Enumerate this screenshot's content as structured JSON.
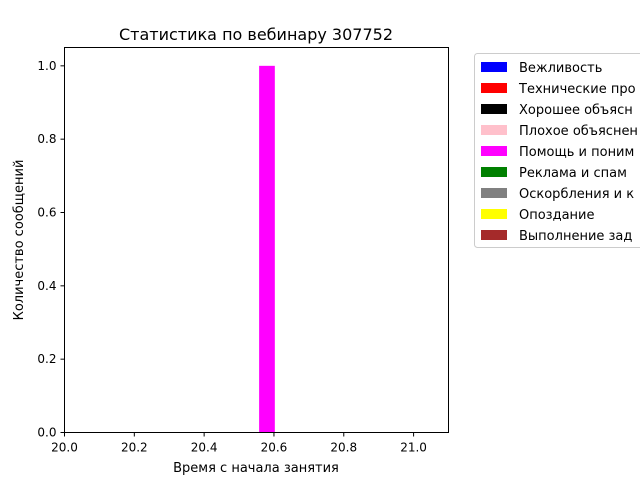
{
  "chart_data": {
    "type": "bar",
    "title": "Статистика по вебинару 307752",
    "xlabel": "Время с начала занятия",
    "ylabel": "Количество сообщений",
    "xlim": [
      20.0,
      21.1
    ],
    "ylim": [
      0,
      1.05
    ],
    "xticks": [
      "20.0",
      "20.2",
      "20.4",
      "20.6",
      "20.8",
      "21.0"
    ],
    "xtick_values": [
      20.0,
      20.2,
      20.4,
      20.6,
      20.8,
      21.0
    ],
    "yticks": [
      "0.0",
      "0.2",
      "0.4",
      "0.6",
      "0.8",
      "1.0"
    ],
    "ytick_values": [
      0.0,
      0.2,
      0.4,
      0.6,
      0.8,
      1.0
    ],
    "grid": false,
    "legend_position": "outside-right",
    "series": [
      {
        "name": "Вежливость",
        "color": "#0000ff",
        "points": []
      },
      {
        "name": "Технические про",
        "color": "#ff0000",
        "points": []
      },
      {
        "name": "Хорошее объясн",
        "color": "#000000",
        "points": []
      },
      {
        "name": "Плохое объяснен",
        "color": "#ffc0cb",
        "points": []
      },
      {
        "name": "Помощь и поним",
        "color": "#ff00ff",
        "points": [
          {
            "x": 20.58,
            "width": 0.045,
            "y": 1
          }
        ]
      },
      {
        "name": "Реклама и спам",
        "color": "#008000",
        "points": []
      },
      {
        "name": "Оскорбления и к",
        "color": "#808080",
        "points": []
      },
      {
        "name": "Опоздание",
        "color": "#ffff00",
        "points": []
      },
      {
        "name": "Выполнение зад",
        "color": "#a52a2a",
        "points": []
      }
    ]
  }
}
